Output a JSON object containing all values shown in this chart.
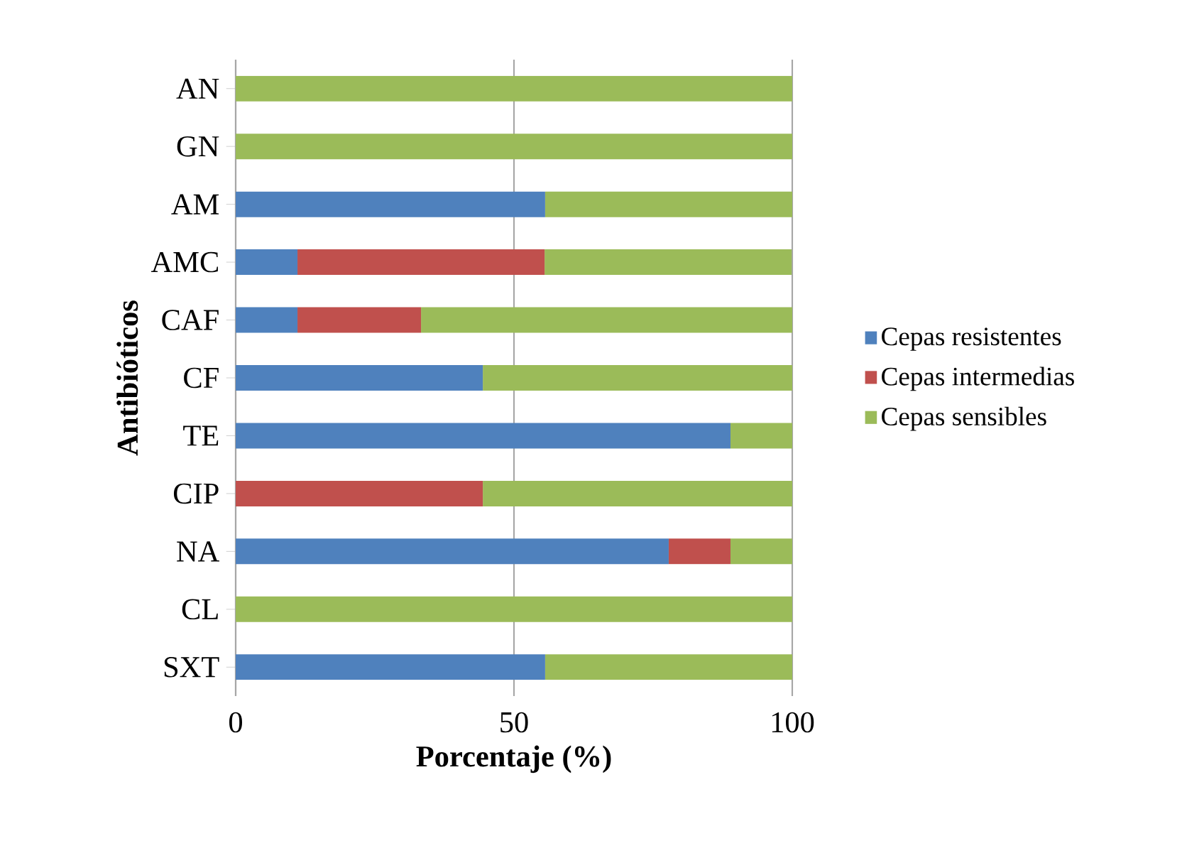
{
  "chart_data": {
    "type": "bar",
    "orientation": "horizontal",
    "stacked": true,
    "xlabel": "Porcentaje (%)",
    "ylabel": "Antibióticos",
    "categories": [
      "AN",
      "GN",
      "AM",
      "AMC",
      "CAF",
      "CF",
      "TE",
      "CIP",
      "NA",
      "CL",
      "SXT"
    ],
    "series": [
      {
        "name": "Cepas resistentes",
        "color": "#4f81bd",
        "values": [
          0,
          0,
          55.6,
          11.1,
          11.1,
          44.4,
          88.9,
          0,
          77.8,
          0,
          55.6
        ]
      },
      {
        "name": "Cepas intermedias",
        "color": "#c0504d",
        "values": [
          0,
          0,
          0,
          44.4,
          22.2,
          0,
          0,
          44.4,
          11.1,
          0,
          0
        ]
      },
      {
        "name": "Cepas sensibles",
        "color": "#9bbb59",
        "values": [
          100,
          100,
          44.4,
          44.4,
          66.7,
          55.6,
          11.1,
          55.6,
          11.1,
          100,
          44.4
        ]
      }
    ],
    "xlim": [
      0,
      100
    ],
    "xticks": [
      0,
      50,
      100
    ],
    "grid": "x",
    "legend": "right"
  }
}
